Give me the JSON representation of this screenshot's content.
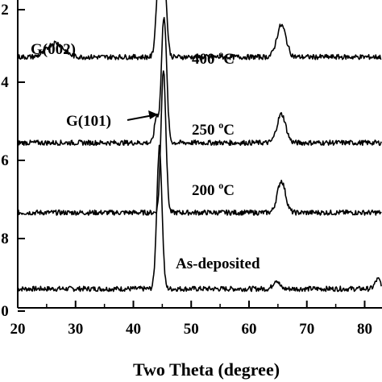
{
  "chart_data": {
    "type": "line",
    "xlabel": "Two Theta (degree)",
    "xlim": [
      20,
      83
    ],
    "ylim": [
      0,
      10
    ],
    "x_ticks": [
      "20",
      "30",
      "40",
      "50",
      "60",
      "70",
      "80"
    ],
    "y_ticks": [
      "0",
      "8",
      "6",
      "4",
      "2"
    ],
    "grid": false,
    "series": [
      {
        "label": "As-deposited",
        "sup": "",
        "baseline": 0.6,
        "noise": 0.08,
        "peaks": [
          {
            "x": 44.5,
            "h": 4.45,
            "w": 0.45
          },
          {
            "x": 64.7,
            "h": 0.28,
            "w": 0.5
          },
          {
            "x": 82.3,
            "h": 0.3,
            "w": 0.5
          }
        ],
        "points": [
          [
            20,
            0.6
          ],
          [
            30,
            0.6
          ],
          [
            40,
            0.62
          ],
          [
            44.5,
            5.05
          ],
          [
            50,
            0.64
          ],
          [
            60,
            0.64
          ],
          [
            64.7,
            0.88
          ],
          [
            70,
            0.66
          ],
          [
            80,
            0.7
          ],
          [
            82.3,
            1.0
          ]
        ]
      },
      {
        "label": "200 ",
        "sup": "o",
        "suffix": "C",
        "baseline": 3.0,
        "noise": 0.08,
        "peaks": [
          {
            "x": 45.2,
            "h": 4.5,
            "w": 0.42
          },
          {
            "x": 65.6,
            "h": 1.0,
            "w": 0.7
          }
        ],
        "points": [
          [
            20,
            3.0
          ],
          [
            30,
            3.0
          ],
          [
            40,
            3.02
          ],
          [
            45.2,
            7.5
          ],
          [
            50,
            3.05
          ],
          [
            60,
            3.05
          ],
          [
            65.6,
            4.05
          ],
          [
            70,
            3.05
          ],
          [
            80,
            3.1
          ],
          [
            83,
            3.2
          ]
        ]
      },
      {
        "label": "250 ",
        "sup": "o",
        "suffix": "C",
        "baseline": 5.2,
        "noise": 0.08,
        "peaks": [
          {
            "x": 45.3,
            "h": 4.0,
            "w": 0.45
          },
          {
            "x": 44.0,
            "h": 0.8,
            "w": 0.35
          },
          {
            "x": 65.6,
            "h": 0.9,
            "w": 0.75
          }
        ],
        "points": [
          [
            20,
            5.2
          ],
          [
            30,
            5.22
          ],
          [
            40,
            5.25
          ],
          [
            44.0,
            6.1
          ],
          [
            45.3,
            9.2
          ],
          [
            50,
            5.28
          ],
          [
            60,
            5.3
          ],
          [
            65.6,
            6.15
          ],
          [
            70,
            5.35
          ],
          [
            80,
            5.4
          ],
          [
            83,
            5.4
          ]
        ]
      },
      {
        "label": "400 ",
        "sup": "o",
        "suffix": "C",
        "baseline": 7.9,
        "noise": 0.08,
        "peaks": [
          {
            "x": 26.5,
            "h": 0.45,
            "w": 1.4
          },
          {
            "x": 44.4,
            "h": 2.5,
            "w": 0.45
          },
          {
            "x": 45.3,
            "h": 2.5,
            "w": 0.45
          },
          {
            "x": 65.6,
            "h": 1.0,
            "w": 0.8
          }
        ],
        "points": [
          [
            20,
            7.9
          ],
          [
            26.5,
            8.35
          ],
          [
            30,
            7.92
          ],
          [
            40,
            8.0
          ],
          [
            44.4,
            10.5
          ],
          [
            45.3,
            10.5
          ],
          [
            50,
            8.05
          ],
          [
            60,
            8.1
          ],
          [
            65.6,
            9.1
          ],
          [
            70,
            8.15
          ],
          [
            80,
            8.2
          ],
          [
            83,
            8.25
          ]
        ]
      }
    ],
    "annotations": [
      {
        "text": "G(002)",
        "x": 22.0,
        "y": 9.2
      },
      {
        "text": "G(101)",
        "x": 29.0,
        "y": 6.5,
        "arrow_to": [
          43.5,
          6.7
        ]
      }
    ]
  }
}
